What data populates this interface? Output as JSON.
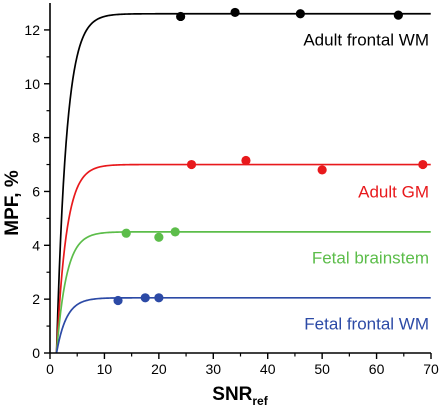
{
  "chart_data": {
    "type": "scatter",
    "xlabel": "SNR",
    "xlabel_sub": "ref",
    "ylabel": "MPF, %",
    "xlim": [
      0,
      70
    ],
    "ylim": [
      0,
      13
    ],
    "x_ticks": [
      0,
      10,
      20,
      30,
      40,
      50,
      60,
      70
    ],
    "y_ticks": [
      0,
      2,
      4,
      6,
      8,
      10,
      12
    ],
    "grid": false,
    "legend": "inline labels at right end of each curve",
    "series": [
      {
        "name": "Adult frontal WM",
        "color": "#000000",
        "plateau": 12.6,
        "points": [
          {
            "x": 24,
            "y": 12.5
          },
          {
            "x": 34,
            "y": 12.65
          },
          {
            "x": 46,
            "y": 12.6
          },
          {
            "x": 64,
            "y": 12.55
          }
        ]
      },
      {
        "name": "Adult GM",
        "color": "#e8191c",
        "plateau": 7.0,
        "points": [
          {
            "x": 26,
            "y": 7.0
          },
          {
            "x": 36,
            "y": 7.15
          },
          {
            "x": 50,
            "y": 6.8
          },
          {
            "x": 68.5,
            "y": 7.0
          }
        ]
      },
      {
        "name": "Fetal brainstem",
        "color": "#5cbd4a",
        "plateau": 4.5,
        "points": [
          {
            "x": 14,
            "y": 4.45
          },
          {
            "x": 20,
            "y": 4.3
          },
          {
            "x": 23,
            "y": 4.5
          }
        ]
      },
      {
        "name": "Fetal frontal WM",
        "color": "#2c4aa6",
        "plateau": 2.05,
        "points": [
          {
            "x": 12.5,
            "y": 1.95
          },
          {
            "x": 17.5,
            "y": 2.05
          },
          {
            "x": 20,
            "y": 2.05
          }
        ]
      }
    ]
  }
}
